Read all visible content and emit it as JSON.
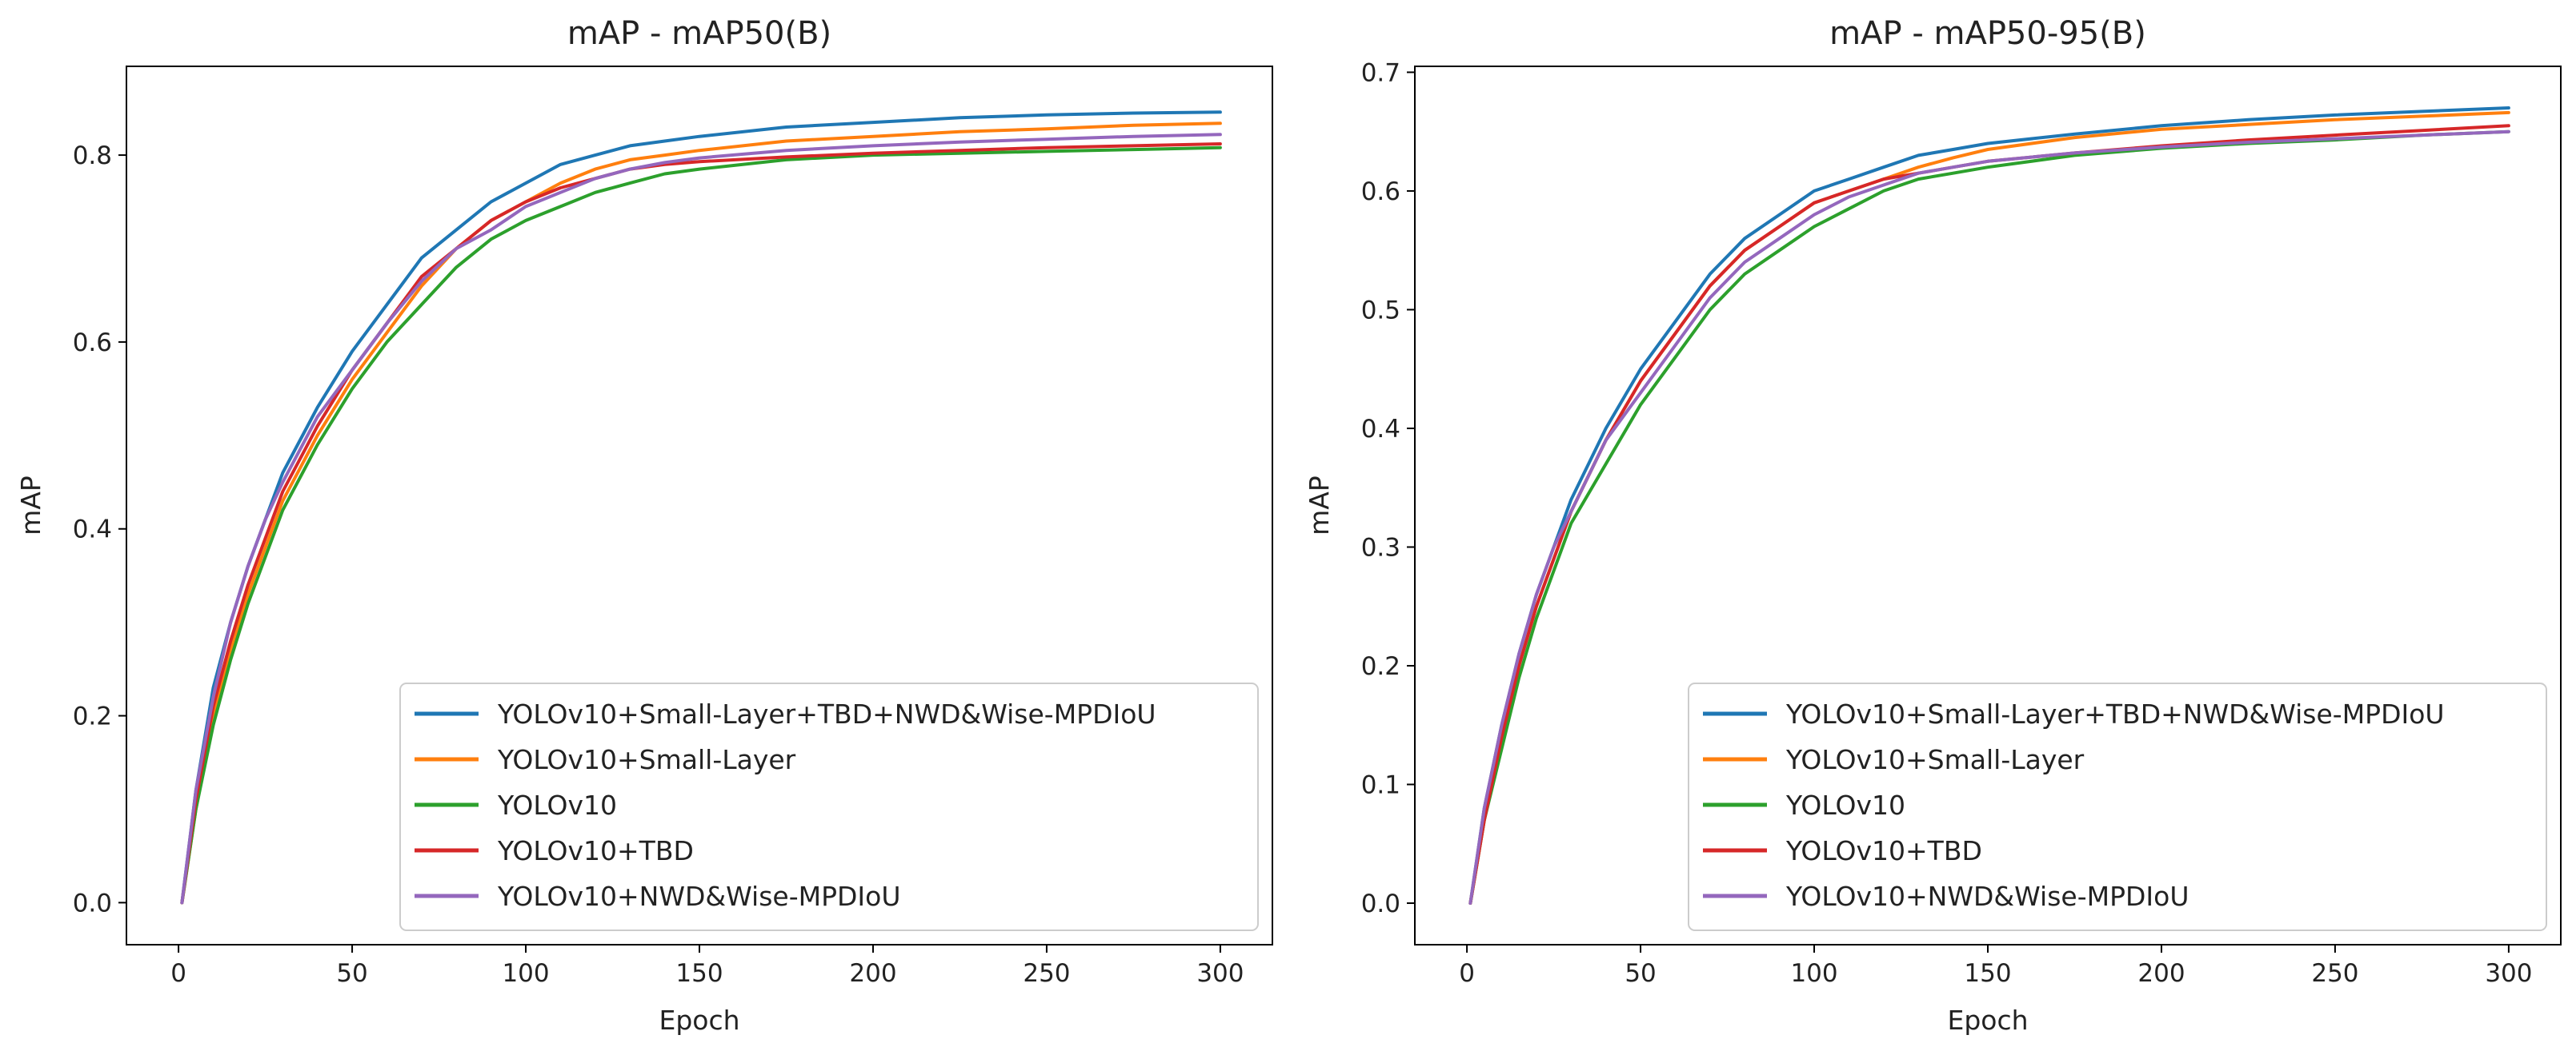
{
  "chart_data": [
    {
      "type": "line",
      "title": "mAP - mAP50(B)",
      "xlabel": "Epoch",
      "ylabel": "mAP",
      "xlim": [
        -15,
        315
      ],
      "ylim": [
        -0.045,
        0.895
      ],
      "xticks": [
        0,
        50,
        100,
        150,
        200,
        250,
        300
      ],
      "xtick_labels": [
        "0",
        "50",
        "100",
        "150",
        "200",
        "250",
        "300"
      ],
      "yticks": [
        0.0,
        0.2,
        0.4,
        0.6,
        0.8
      ],
      "ytick_labels": [
        "0.0",
        "0.2",
        "0.4",
        "0.6",
        "0.8"
      ],
      "legend_position": "lower-right",
      "series": [
        {
          "name": "YOLOv10+Small-Layer+TBD+NWD&Wise-MPDIoU",
          "color": "#1f77b4",
          "x": [
            1,
            5,
            10,
            15,
            20,
            25,
            30,
            40,
            50,
            60,
            70,
            80,
            90,
            100,
            110,
            120,
            130,
            140,
            150,
            175,
            200,
            225,
            250,
            275,
            300
          ],
          "y": [
            0.0,
            0.12,
            0.23,
            0.3,
            0.36,
            0.41,
            0.46,
            0.53,
            0.59,
            0.64,
            0.69,
            0.72,
            0.75,
            0.77,
            0.79,
            0.8,
            0.81,
            0.815,
            0.82,
            0.83,
            0.835,
            0.84,
            0.843,
            0.845,
            0.846
          ]
        },
        {
          "name": "YOLOv10+Small-Layer",
          "color": "#ff7f0e",
          "x": [
            1,
            5,
            10,
            15,
            20,
            25,
            30,
            40,
            50,
            60,
            70,
            80,
            90,
            100,
            110,
            120,
            130,
            140,
            150,
            175,
            200,
            225,
            250,
            275,
            300
          ],
          "y": [
            0.0,
            0.1,
            0.2,
            0.27,
            0.33,
            0.38,
            0.43,
            0.5,
            0.56,
            0.61,
            0.66,
            0.7,
            0.73,
            0.75,
            0.77,
            0.785,
            0.795,
            0.8,
            0.805,
            0.815,
            0.82,
            0.825,
            0.828,
            0.832,
            0.834
          ]
        },
        {
          "name": "YOLOv10",
          "color": "#2ca02c",
          "x": [
            1,
            5,
            10,
            15,
            20,
            25,
            30,
            40,
            50,
            60,
            70,
            80,
            90,
            100,
            110,
            120,
            130,
            140,
            150,
            175,
            200,
            225,
            250,
            275,
            300
          ],
          "y": [
            0.0,
            0.1,
            0.19,
            0.26,
            0.32,
            0.37,
            0.42,
            0.49,
            0.55,
            0.6,
            0.64,
            0.68,
            0.71,
            0.73,
            0.745,
            0.76,
            0.77,
            0.78,
            0.785,
            0.795,
            0.8,
            0.802,
            0.804,
            0.806,
            0.808
          ]
        },
        {
          "name": "YOLOv10+TBD",
          "color": "#d62728",
          "x": [
            1,
            5,
            10,
            15,
            20,
            25,
            30,
            40,
            50,
            60,
            70,
            80,
            90,
            100,
            110,
            120,
            130,
            140,
            150,
            175,
            200,
            225,
            250,
            275,
            300
          ],
          "y": [
            0.0,
            0.11,
            0.21,
            0.28,
            0.34,
            0.39,
            0.44,
            0.51,
            0.57,
            0.62,
            0.67,
            0.7,
            0.73,
            0.75,
            0.765,
            0.775,
            0.785,
            0.79,
            0.793,
            0.798,
            0.802,
            0.805,
            0.808,
            0.81,
            0.812
          ]
        },
        {
          "name": "YOLOv10+NWD&Wise-MPDIoU",
          "color": "#9467bd",
          "x": [
            1,
            5,
            10,
            15,
            20,
            25,
            30,
            40,
            50,
            60,
            70,
            80,
            90,
            100,
            110,
            120,
            130,
            140,
            150,
            175,
            200,
            225,
            250,
            275,
            300
          ],
          "y": [
            0.0,
            0.12,
            0.22,
            0.3,
            0.36,
            0.41,
            0.45,
            0.52,
            0.57,
            0.62,
            0.665,
            0.7,
            0.72,
            0.745,
            0.76,
            0.775,
            0.785,
            0.792,
            0.797,
            0.805,
            0.81,
            0.814,
            0.817,
            0.82,
            0.822
          ]
        }
      ]
    },
    {
      "type": "line",
      "title": "mAP - mAP50-95(B)",
      "xlabel": "Epoch",
      "ylabel": "mAP",
      "xlim": [
        -15,
        315
      ],
      "ylim": [
        -0.035,
        0.705
      ],
      "xticks": [
        0,
        50,
        100,
        150,
        200,
        250,
        300
      ],
      "xtick_labels": [
        "0",
        "50",
        "100",
        "150",
        "200",
        "250",
        "300"
      ],
      "yticks": [
        0.0,
        0.1,
        0.2,
        0.3,
        0.4,
        0.5,
        0.6,
        0.7
      ],
      "ytick_labels": [
        "0.0",
        "0.1",
        "0.2",
        "0.3",
        "0.4",
        "0.5",
        "0.6",
        "0.7"
      ],
      "legend_position": "lower-right",
      "series": [
        {
          "name": "YOLOv10+Small-Layer+TBD+NWD&Wise-MPDIoU",
          "color": "#1f77b4",
          "x": [
            1,
            5,
            10,
            15,
            20,
            25,
            30,
            40,
            50,
            60,
            70,
            80,
            90,
            100,
            110,
            120,
            130,
            140,
            150,
            175,
            200,
            225,
            250,
            275,
            300
          ],
          "y": [
            0.0,
            0.08,
            0.15,
            0.21,
            0.26,
            0.3,
            0.34,
            0.4,
            0.45,
            0.49,
            0.53,
            0.56,
            0.58,
            0.6,
            0.61,
            0.62,
            0.63,
            0.635,
            0.64,
            0.648,
            0.655,
            0.66,
            0.664,
            0.667,
            0.67
          ]
        },
        {
          "name": "YOLOv10+Small-Layer",
          "color": "#ff7f0e",
          "x": [
            1,
            5,
            10,
            15,
            20,
            25,
            30,
            40,
            50,
            60,
            70,
            80,
            90,
            100,
            110,
            120,
            130,
            140,
            150,
            175,
            200,
            225,
            250,
            275,
            300
          ],
          "y": [
            0.0,
            0.07,
            0.14,
            0.2,
            0.25,
            0.29,
            0.33,
            0.39,
            0.44,
            0.48,
            0.52,
            0.55,
            0.57,
            0.59,
            0.6,
            0.61,
            0.62,
            0.628,
            0.635,
            0.645,
            0.652,
            0.656,
            0.66,
            0.663,
            0.666
          ]
        },
        {
          "name": "YOLOv10",
          "color": "#2ca02c",
          "x": [
            1,
            5,
            10,
            15,
            20,
            25,
            30,
            40,
            50,
            60,
            70,
            80,
            90,
            100,
            110,
            120,
            130,
            140,
            150,
            175,
            200,
            225,
            250,
            275,
            300
          ],
          "y": [
            0.0,
            0.07,
            0.13,
            0.19,
            0.24,
            0.28,
            0.32,
            0.37,
            0.42,
            0.46,
            0.5,
            0.53,
            0.55,
            0.57,
            0.585,
            0.6,
            0.61,
            0.615,
            0.62,
            0.63,
            0.636,
            0.64,
            0.643,
            0.647,
            0.65
          ]
        },
        {
          "name": "YOLOv10+TBD",
          "color": "#d62728",
          "x": [
            1,
            5,
            10,
            15,
            20,
            25,
            30,
            40,
            50,
            60,
            70,
            80,
            90,
            100,
            110,
            120,
            130,
            140,
            150,
            175,
            200,
            225,
            250,
            275,
            300
          ],
          "y": [
            0.0,
            0.07,
            0.14,
            0.2,
            0.25,
            0.29,
            0.33,
            0.39,
            0.44,
            0.48,
            0.52,
            0.55,
            0.57,
            0.59,
            0.6,
            0.61,
            0.615,
            0.62,
            0.625,
            0.632,
            0.638,
            0.643,
            0.647,
            0.651,
            0.655
          ]
        },
        {
          "name": "YOLOv10+NWD&Wise-MPDIoU",
          "color": "#9467bd",
          "x": [
            1,
            5,
            10,
            15,
            20,
            25,
            30,
            40,
            50,
            60,
            70,
            80,
            90,
            100,
            110,
            120,
            130,
            140,
            150,
            175,
            200,
            225,
            250,
            275,
            300
          ],
          "y": [
            0.0,
            0.08,
            0.15,
            0.21,
            0.26,
            0.3,
            0.33,
            0.39,
            0.43,
            0.47,
            0.51,
            0.54,
            0.56,
            0.58,
            0.595,
            0.605,
            0.615,
            0.62,
            0.625,
            0.632,
            0.637,
            0.641,
            0.644,
            0.647,
            0.65
          ]
        }
      ]
    }
  ]
}
